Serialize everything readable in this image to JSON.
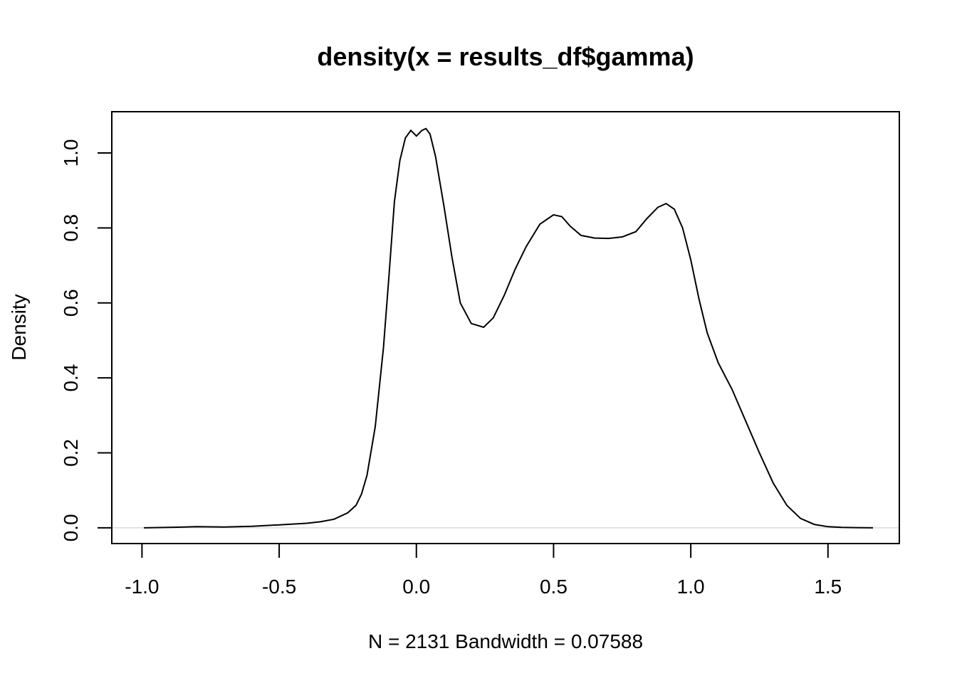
{
  "chart_data": {
    "type": "line",
    "title": "density(x = results_df$gamma)",
    "xlabel": "N = 2131   Bandwidth = 0.07588",
    "ylabel": "Density",
    "xlim": [
      -1.11,
      1.76
    ],
    "ylim": [
      -0.042,
      1.11
    ],
    "x_ticks": [
      -1.0,
      -0.5,
      0.0,
      0.5,
      1.0,
      1.5
    ],
    "x_tick_labels": [
      "-1.0",
      "-0.5",
      "0.0",
      "0.5",
      "1.0",
      "1.5"
    ],
    "y_ticks": [
      0.0,
      0.2,
      0.4,
      0.6,
      0.8,
      1.0
    ],
    "y_tick_labels": [
      "0.0",
      "0.2",
      "0.4",
      "0.6",
      "0.8",
      "1.0"
    ],
    "zero_line": true,
    "grid": false,
    "series": [
      {
        "x": [
          -0.993,
          -0.9,
          -0.8,
          -0.7,
          -0.6,
          -0.5,
          -0.4,
          -0.35,
          -0.3,
          -0.25,
          -0.22,
          -0.2,
          -0.18,
          -0.15,
          -0.12,
          -0.1,
          -0.08,
          -0.06,
          -0.04,
          -0.02,
          0.0,
          0.02,
          0.035,
          0.05,
          0.07,
          0.1,
          0.13,
          0.16,
          0.2,
          0.245,
          0.28,
          0.32,
          0.36,
          0.4,
          0.45,
          0.5,
          0.53,
          0.56,
          0.6,
          0.65,
          0.7,
          0.75,
          0.8,
          0.84,
          0.88,
          0.91,
          0.94,
          0.97,
          1.0,
          1.03,
          1.06,
          1.1,
          1.15,
          1.2,
          1.25,
          1.3,
          1.35,
          1.4,
          1.45,
          1.5,
          1.55,
          1.6,
          1.664
        ],
        "y": [
          0.0,
          0.001,
          0.003,
          0.002,
          0.004,
          0.008,
          0.012,
          0.016,
          0.023,
          0.04,
          0.06,
          0.09,
          0.14,
          0.27,
          0.48,
          0.67,
          0.87,
          0.98,
          1.04,
          1.06,
          1.045,
          1.06,
          1.065,
          1.05,
          0.99,
          0.86,
          0.72,
          0.6,
          0.545,
          0.535,
          0.56,
          0.62,
          0.69,
          0.75,
          0.81,
          0.835,
          0.83,
          0.805,
          0.78,
          0.773,
          0.772,
          0.776,
          0.79,
          0.825,
          0.855,
          0.865,
          0.85,
          0.8,
          0.715,
          0.61,
          0.52,
          0.44,
          0.37,
          0.285,
          0.2,
          0.12,
          0.06,
          0.025,
          0.009,
          0.003,
          0.001,
          0.0005,
          0.0
        ]
      }
    ]
  }
}
